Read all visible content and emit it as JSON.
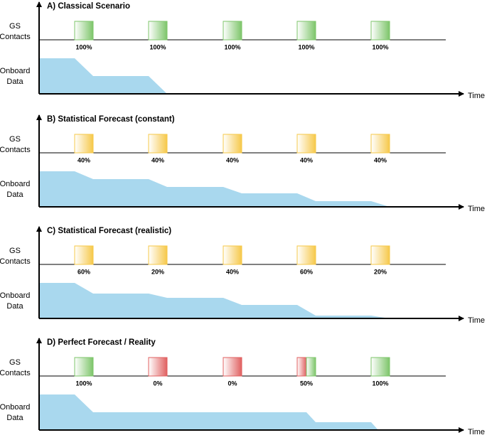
{
  "panels": [
    {
      "title": "A) Classical Scenario",
      "gs_label": [
        "GS",
        "Contacts"
      ],
      "data_label": [
        "Onboard",
        "Data"
      ],
      "x_label": "Time",
      "contacts": [
        {
          "label": "100%",
          "colors": [
            "#7dc56a"
          ]
        },
        {
          "label": "100%",
          "colors": [
            "#7dc56a"
          ]
        },
        {
          "label": "100%",
          "colors": [
            "#7dc56a"
          ]
        },
        {
          "label": "100%",
          "colors": [
            "#7dc56a"
          ]
        },
        {
          "label": "100%",
          "colors": [
            "#7dc56a"
          ]
        }
      ]
    },
    {
      "title": "B) Statistical Forecast (constant)",
      "gs_label": [
        "GS",
        "Contacts"
      ],
      "data_label": [
        "Onboard",
        "Data"
      ],
      "x_label": "Time",
      "contacts": [
        {
          "label": "40%",
          "colors": [
            "#f6c84a"
          ]
        },
        {
          "label": "40%",
          "colors": [
            "#f6c84a"
          ]
        },
        {
          "label": "40%",
          "colors": [
            "#f6c84a"
          ]
        },
        {
          "label": "40%",
          "colors": [
            "#f6c84a"
          ]
        },
        {
          "label": "40%",
          "colors": [
            "#f6c84a"
          ]
        }
      ]
    },
    {
      "title": "C) Statistical Forecast (realistic)",
      "gs_label": [
        "GS",
        "Contacts"
      ],
      "data_label": [
        "Onboard",
        "Data"
      ],
      "x_label": "Time",
      "contacts": [
        {
          "label": "60%",
          "colors": [
            "#f6c84a"
          ]
        },
        {
          "label": "20%",
          "colors": [
            "#f6c84a"
          ]
        },
        {
          "label": "40%",
          "colors": [
            "#f6c84a"
          ]
        },
        {
          "label": "60%",
          "colors": [
            "#f6c84a"
          ]
        },
        {
          "label": "20%",
          "colors": [
            "#f6c84a"
          ]
        }
      ]
    },
    {
      "title": "D) Perfect Forecast / Reality",
      "gs_label": [
        "GS",
        "Contacts"
      ],
      "data_label": [
        "Onboard",
        "Data"
      ],
      "x_label": "Time",
      "contacts": [
        {
          "label": "100%",
          "colors": [
            "#7dc56a"
          ]
        },
        {
          "label": "0%",
          "colors": [
            "#e06060"
          ]
        },
        {
          "label": "0%",
          "colors": [
            "#e06060"
          ]
        },
        {
          "label": "50%",
          "colors": [
            "#e06060",
            "#7dc56a"
          ]
        },
        {
          "label": "100%",
          "colors": [
            "#7dc56a"
          ]
        }
      ]
    }
  ]
}
